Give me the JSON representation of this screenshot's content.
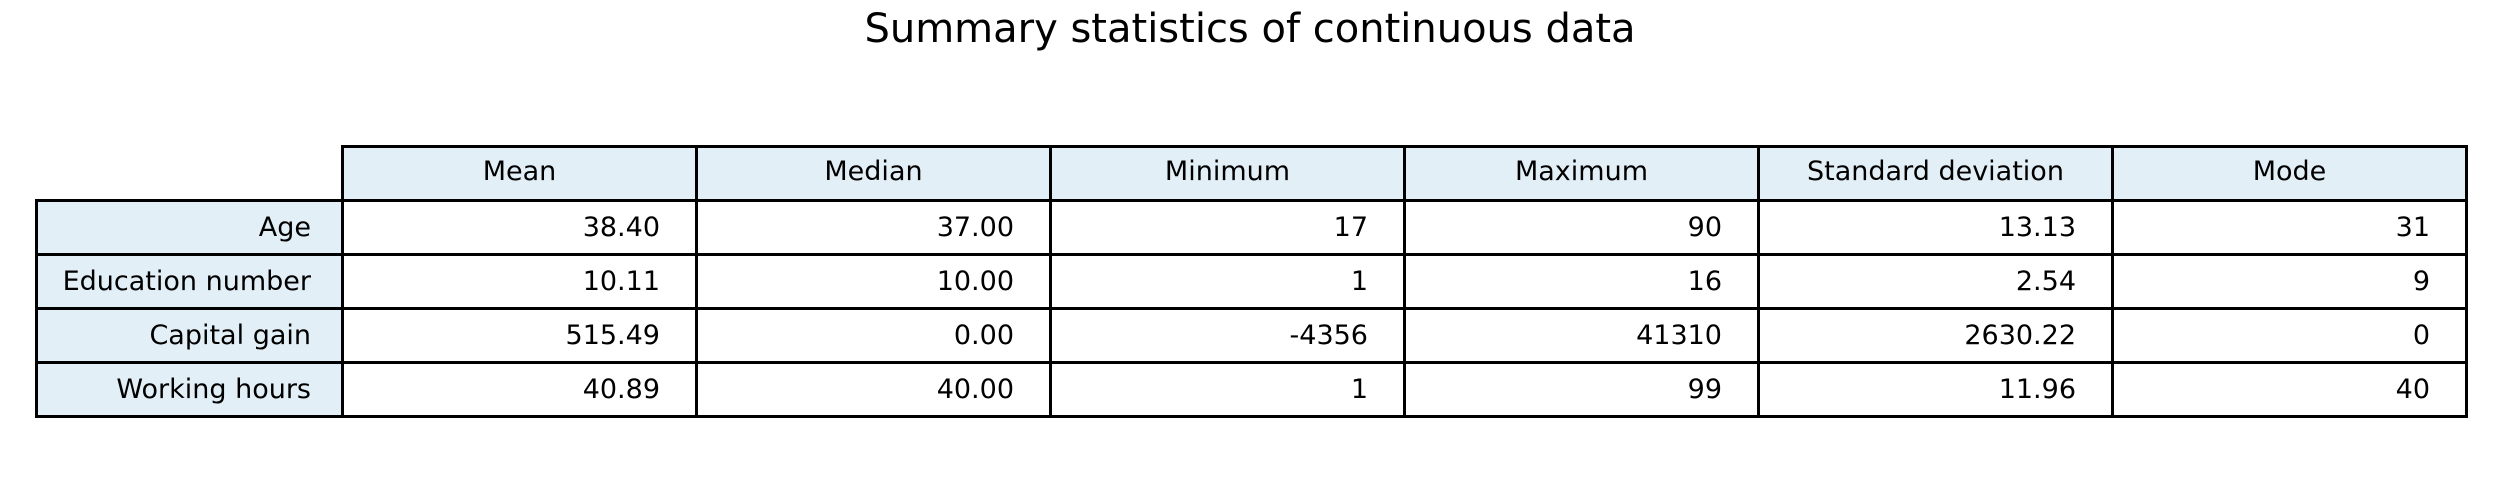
{
  "chart_data": {
    "type": "table",
    "title": "Summary statistics of continuous data",
    "columns": [
      "Mean",
      "Median",
      "Minimum",
      "Maximum",
      "Standard deviation",
      "Mode"
    ],
    "rows": [
      {
        "label": "Age",
        "values": [
          "38.40",
          "37.00",
          "17",
          "90",
          "13.13",
          "31"
        ]
      },
      {
        "label": "Education number",
        "values": [
          "10.11",
          "10.00",
          "1",
          "16",
          "2.54",
          "9"
        ]
      },
      {
        "label": "Capital gain",
        "values": [
          "515.49",
          "0.00",
          "-4356",
          "41310",
          "2630.22",
          "0"
        ]
      },
      {
        "label": "Working hours",
        "values": [
          "40.89",
          "40.00",
          "1",
          "99",
          "11.96",
          "40"
        ]
      }
    ],
    "header_fill": "#e3eff6",
    "cell_fill": "#ffffff",
    "border_color": "#000000"
  }
}
